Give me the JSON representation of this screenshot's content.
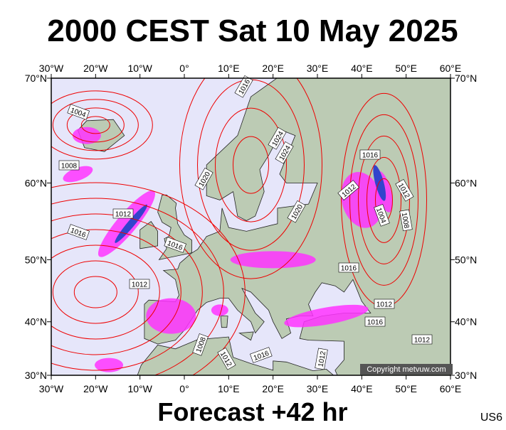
{
  "header": {
    "title": "2000 CEST Sat 10 May 2025"
  },
  "map": {
    "projection": "mercator",
    "lon_ticks": [
      {
        "value": -30,
        "label": "30°W"
      },
      {
        "value": -20,
        "label": "20°W"
      },
      {
        "value": -10,
        "label": "10°W"
      },
      {
        "value": 0,
        "label": "0°"
      },
      {
        "value": 10,
        "label": "10°E"
      },
      {
        "value": 20,
        "label": "20°E"
      },
      {
        "value": 30,
        "label": "30°E"
      },
      {
        "value": 40,
        "label": "40°E"
      },
      {
        "value": 50,
        "label": "50°E"
      },
      {
        "value": 60,
        "label": "60°E"
      }
    ],
    "lat_ticks": [
      {
        "value": 30,
        "label": "30°N"
      },
      {
        "value": 40,
        "label": "40°N"
      },
      {
        "value": 50,
        "label": "50°N"
      },
      {
        "value": 60,
        "label": "60°N"
      },
      {
        "value": 70,
        "label": "70°N"
      }
    ],
    "isobar_labels": [
      1004,
      1008,
      1012,
      1016,
      1016,
      1020,
      1024,
      1024,
      1016,
      1020,
      1012,
      1016,
      1012,
      1012,
      1004,
      1008,
      1016,
      1012,
      1016,
      1012,
      1008,
      1012,
      1016,
      1012
    ],
    "copyright": "Copyright metvuw.com"
  },
  "footer": {
    "forecast": "Forecast +42 hr",
    "code": "US6"
  }
}
